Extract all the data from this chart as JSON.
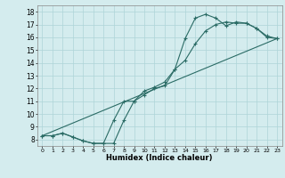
{
  "xlabel": "Humidex (Indice chaleur)",
  "xlim": [
    -0.5,
    23.5
  ],
  "ylim": [
    7.5,
    18.5
  ],
  "xticks": [
    0,
    1,
    2,
    3,
    4,
    5,
    6,
    7,
    8,
    9,
    10,
    11,
    12,
    13,
    14,
    15,
    16,
    17,
    18,
    19,
    20,
    21,
    22,
    23
  ],
  "yticks": [
    8,
    9,
    10,
    11,
    12,
    13,
    14,
    15,
    16,
    17,
    18
  ],
  "bg_color": "#d4ecee",
  "grid_color": "#aed4d8",
  "line_color": "#2a6b65",
  "line1_x": [
    0,
    1,
    2,
    3,
    4,
    5,
    6,
    7,
    8,
    9,
    10,
    11,
    12,
    13,
    14,
    15,
    16,
    17,
    18,
    19,
    20,
    21,
    22,
    23
  ],
  "line1_y": [
    8.3,
    8.3,
    8.5,
    8.2,
    7.9,
    7.7,
    7.7,
    7.7,
    9.5,
    11.0,
    11.8,
    12.1,
    12.5,
    13.5,
    15.9,
    17.5,
    17.8,
    17.5,
    16.9,
    17.2,
    17.1,
    16.7,
    16.1,
    15.9
  ],
  "line2_x": [
    0,
    1,
    2,
    3,
    4,
    5,
    6,
    7,
    8,
    9,
    10,
    11,
    12,
    13,
    14,
    15,
    16,
    17,
    18,
    19,
    20,
    21,
    22,
    23
  ],
  "line2_y": [
    8.3,
    8.3,
    8.5,
    8.2,
    7.9,
    7.7,
    7.7,
    9.5,
    11.0,
    11.0,
    11.5,
    12.0,
    12.2,
    13.5,
    14.2,
    15.5,
    16.5,
    17.0,
    17.2,
    17.1,
    17.1,
    16.7,
    16.0,
    15.9
  ],
  "line3_x": [
    0,
    23
  ],
  "line3_y": [
    8.3,
    15.9
  ]
}
